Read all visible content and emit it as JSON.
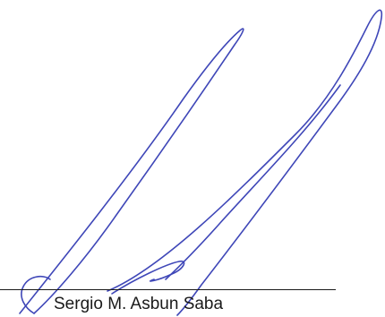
{
  "signer": {
    "name": "Sergio M. Asbun Saba"
  },
  "colors": {
    "ink": "#3f47b8",
    "text": "#1a1a1a",
    "background": "#ffffff"
  }
}
